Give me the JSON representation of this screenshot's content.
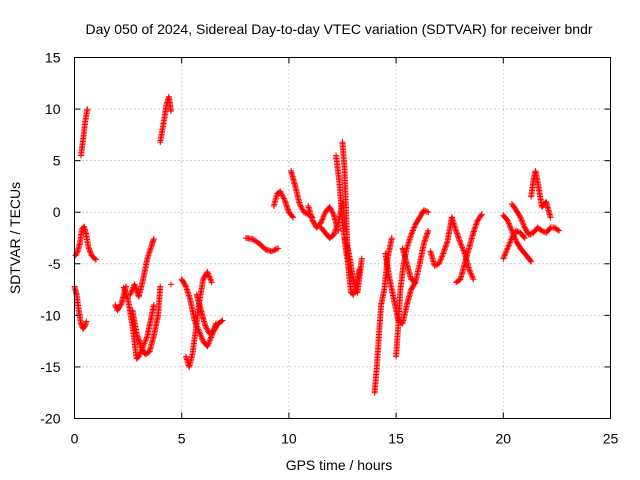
{
  "chart_data": {
    "type": "scatter",
    "title": "Day 050 of 2024, Sidereal Day-to-day VTEC variation (SDTVAR) for receiver bndr",
    "xlabel": "GPS time / hours",
    "ylabel": "SDTVAR / TECUs",
    "xlim": [
      0,
      25
    ],
    "ylim": [
      -20,
      15
    ],
    "xticks": [
      0,
      5,
      10,
      15,
      20,
      25
    ],
    "yticks": [
      -20,
      -15,
      -10,
      -5,
      0,
      5,
      10,
      15
    ],
    "xtick_labels": [
      "0",
      "5",
      "10",
      "15",
      "20",
      "25"
    ],
    "ytick_labels": [
      "-20",
      "-15",
      "-10",
      "-5",
      "0",
      "5",
      "10",
      "15"
    ],
    "grid": true,
    "marker": "+",
    "color": "#ff0000",
    "series": [
      {
        "name": "t1",
        "x": [
          0.0,
          0.1,
          0.2,
          0.3,
          0.4,
          0.5,
          0.55
        ],
        "y": [
          -7.2,
          -8.0,
          -9.5,
          -10.8,
          -11.3,
          -11.0,
          -10.6
        ]
      },
      {
        "name": "t2",
        "x": [
          0.05,
          0.15,
          0.25,
          0.35,
          0.45,
          0.55,
          0.65,
          0.8,
          1.0
        ],
        "y": [
          -4.2,
          -3.8,
          -3.0,
          -1.6,
          -1.4,
          -2.2,
          -3.4,
          -4.2,
          -4.6
        ]
      },
      {
        "name": "t3",
        "x": [
          0.3,
          0.4,
          0.5,
          0.6
        ],
        "y": [
          5.5,
          7.0,
          8.8,
          10.0
        ]
      },
      {
        "name": "t4",
        "x": [
          1.9,
          2.0,
          2.1,
          2.2,
          2.3,
          2.4
        ],
        "y": [
          -9.0,
          -9.5,
          -9.2,
          -8.8,
          -8.0,
          -7.2
        ]
      },
      {
        "name": "t5",
        "x": [
          2.3,
          2.5,
          2.7,
          2.9,
          3.0,
          3.2,
          3.4,
          3.6,
          3.7
        ],
        "y": [
          -7.3,
          -8.5,
          -11.0,
          -14.2,
          -14.0,
          -13.0,
          -12.0,
          -10.0,
          -9.0
        ]
      },
      {
        "name": "t6",
        "x": [
          2.6,
          2.8,
          3.0,
          3.2,
          3.4,
          3.6,
          3.7
        ],
        "y": [
          -8.0,
          -7.0,
          -8.2,
          -6.5,
          -4.5,
          -3.2,
          -2.6
        ]
      },
      {
        "name": "t7",
        "x": [
          2.7,
          2.9,
          3.1,
          3.3,
          3.5,
          3.7,
          3.9,
          4.0
        ],
        "y": [
          -9.5,
          -11.8,
          -13.0,
          -13.8,
          -13.5,
          -12.0,
          -10.0,
          -7.2
        ]
      },
      {
        "name": "t8",
        "x": [
          4.0,
          4.1,
          4.2,
          4.3,
          4.4,
          4.5
        ],
        "y": [
          6.8,
          8.0,
          9.2,
          10.5,
          11.2,
          9.8
        ]
      },
      {
        "name": "t9",
        "x": [
          4.5
        ],
        "y": [
          -7.0
        ]
      },
      {
        "name": "t10",
        "x": [
          5.0,
          5.2,
          5.4,
          5.6,
          5.8,
          6.0,
          6.2,
          6.4,
          6.6
        ],
        "y": [
          -6.5,
          -7.2,
          -8.5,
          -10.5,
          -11.5,
          -12.5,
          -13.0,
          -12.0,
          -10.8
        ]
      },
      {
        "name": "t11",
        "x": [
          5.2,
          5.35,
          5.5,
          5.65,
          5.8,
          6.0,
          6.2,
          6.4
        ],
        "y": [
          -14.0,
          -15.0,
          -13.8,
          -11.5,
          -9.0,
          -6.5,
          -5.8,
          -6.8
        ]
      },
      {
        "name": "t12",
        "x": [
          5.7,
          5.9,
          6.1,
          6.3,
          6.5,
          6.7,
          6.9
        ],
        "y": [
          -8.0,
          -9.5,
          -11.0,
          -11.8,
          -11.5,
          -10.8,
          -10.5
        ]
      },
      {
        "name": "t13",
        "x": [
          8.0,
          8.3,
          8.6,
          8.9,
          9.2,
          9.5
        ],
        "y": [
          -2.5,
          -2.6,
          -3.0,
          -3.6,
          -3.8,
          -3.5
        ]
      },
      {
        "name": "t14",
        "x": [
          9.3,
          9.45,
          9.6,
          9.8,
          10.0,
          10.2
        ],
        "y": [
          0.6,
          1.8,
          2.0,
          1.2,
          0.0,
          -0.5
        ]
      },
      {
        "name": "t15",
        "x": [
          10.1,
          10.3,
          10.5,
          10.7,
          10.9,
          11.1
        ],
        "y": [
          4.0,
          2.5,
          0.8,
          0.0,
          -0.2,
          -0.5
        ]
      },
      {
        "name": "t16",
        "x": [
          10.9,
          11.1,
          11.3,
          11.5,
          11.7,
          11.9,
          12.1,
          12.3
        ],
        "y": [
          0.6,
          -0.8,
          -1.5,
          -1.0,
          0.0,
          0.5,
          -0.3,
          -1.8
        ]
      },
      {
        "name": "t17",
        "x": [
          11.5,
          11.7,
          11.9,
          12.1,
          12.3,
          12.5
        ],
        "y": [
          -1.5,
          -2.0,
          -2.5,
          -2.2,
          -1.0,
          0.8
        ]
      },
      {
        "name": "t18",
        "x": [
          12.2,
          12.35,
          12.5,
          12.65,
          12.8
        ],
        "y": [
          5.5,
          3.0,
          -1.0,
          -3.5,
          -5.5
        ]
      },
      {
        "name": "t19",
        "x": [
          12.5,
          12.6,
          12.7,
          12.8,
          12.9,
          13.0,
          13.1,
          13.3
        ],
        "y": [
          6.8,
          4.0,
          -2.0,
          -6.0,
          -7.8,
          -8.0,
          -7.5,
          -5.5
        ]
      },
      {
        "name": "t20",
        "x": [
          12.6,
          12.8,
          13.0,
          13.2,
          13.4
        ],
        "y": [
          -2.5,
          -4.0,
          -6.5,
          -7.8,
          -4.5
        ]
      },
      {
        "name": "t21",
        "x": [
          14.0,
          14.1,
          14.2,
          14.3,
          14.45,
          14.6,
          14.8
        ],
        "y": [
          -17.5,
          -15.0,
          -12.0,
          -9.0,
          -7.5,
          -4.5,
          -2.5
        ]
      },
      {
        "name": "t22",
        "x": [
          14.5,
          14.7,
          14.9,
          15.1,
          15.3,
          15.5,
          15.7,
          15.9
        ],
        "y": [
          -4.0,
          -6.5,
          -8.5,
          -10.5,
          -10.8,
          -9.0,
          -7.5,
          -6.8
        ]
      },
      {
        "name": "t23",
        "x": [
          15.0,
          15.1,
          15.2,
          15.35,
          15.5,
          15.7,
          15.9,
          16.1,
          16.3,
          16.5
        ],
        "y": [
          -14.0,
          -11.0,
          -7.5,
          -5.0,
          -3.5,
          -2.2,
          -1.2,
          -0.5,
          0.2,
          0.0
        ]
      },
      {
        "name": "t24",
        "x": [
          15.3,
          15.5,
          15.7,
          15.9,
          16.1,
          16.3,
          16.5
        ],
        "y": [
          -3.5,
          -5.0,
          -6.5,
          -6.8,
          -5.0,
          -3.0,
          -1.8
        ]
      },
      {
        "name": "t25",
        "x": [
          16.6,
          16.8,
          17.0,
          17.2,
          17.4,
          17.6
        ],
        "y": [
          -3.8,
          -5.2,
          -5.0,
          -4.0,
          -2.8,
          -0.5
        ]
      },
      {
        "name": "t26",
        "x": [
          17.6,
          17.8,
          18.0,
          18.2,
          18.4,
          18.6
        ],
        "y": [
          -0.5,
          -1.8,
          -3.0,
          -4.0,
          -5.5,
          -6.5
        ]
      },
      {
        "name": "t27",
        "x": [
          17.8,
          18.0,
          18.2,
          18.4,
          18.6,
          18.8,
          19.0
        ],
        "y": [
          -6.8,
          -6.5,
          -5.0,
          -3.5,
          -2.0,
          -0.8,
          -0.2
        ]
      },
      {
        "name": "t28",
        "x": [
          20.0,
          20.2,
          20.4,
          20.6,
          20.8,
          21.0,
          21.2,
          21.3
        ],
        "y": [
          -0.3,
          -0.8,
          -1.8,
          -2.8,
          -3.5,
          -4.0,
          -4.5,
          -4.8
        ]
      },
      {
        "name": "t29",
        "x": [
          20.0,
          20.2,
          20.4,
          20.6,
          20.8,
          21.0
        ],
        "y": [
          -4.5,
          -3.5,
          -2.5,
          -1.8,
          -2.0,
          -2.5
        ]
      },
      {
        "name": "t30",
        "x": [
          20.4,
          20.6,
          20.8,
          21.0,
          21.2,
          21.4,
          21.6,
          21.8,
          22.0,
          22.2,
          22.4,
          22.6
        ],
        "y": [
          0.8,
          0.2,
          -0.5,
          -1.5,
          -2.2,
          -2.0,
          -1.5,
          -1.8,
          -2.0,
          -1.5,
          -1.5,
          -1.8
        ]
      },
      {
        "name": "t31",
        "x": [
          21.3,
          21.4,
          21.5,
          21.6,
          21.8,
          22.0,
          22.2
        ],
        "y": [
          1.5,
          3.0,
          4.0,
          3.0,
          0.5,
          1.0,
          -0.5
        ]
      }
    ]
  }
}
